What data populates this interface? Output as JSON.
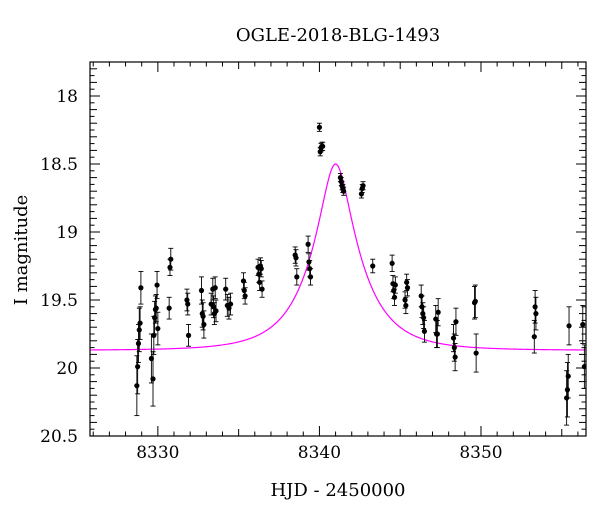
{
  "chart_data": {
    "type": "scatter",
    "title": "OGLE-2018-BLG-1493",
    "xlabel": "HJD - 2450000",
    "ylabel": "I magnitude",
    "xlim": [
      8325.8,
      8356.5
    ],
    "ylim": [
      20.5,
      17.75
    ],
    "y_inverted": true,
    "x_ticks": [
      8330,
      8340,
      8350
    ],
    "y_ticks": [
      18,
      18.5,
      19,
      19.5,
      20,
      20.5
    ],
    "y_tick_labels": [
      "18",
      "18.5",
      "19",
      "19.5",
      "20",
      "20.5"
    ],
    "grid": false,
    "colors": {
      "points": "#000000",
      "model": "#ff00ff"
    },
    "model": {
      "name": "model fit",
      "baseline_mag": 19.87,
      "peak_mag": 18.5,
      "t0": 8341.0,
      "tE": 3.0
    },
    "series": [
      {
        "name": "data",
        "points": [
          [
            8328.7,
            20.13,
            0.22
          ],
          [
            8328.75,
            19.99,
            0.2
          ],
          [
            8328.8,
            19.82,
            0.14
          ],
          [
            8328.85,
            19.72,
            0.16
          ],
          [
            8328.9,
            19.67,
            0.12
          ],
          [
            8328.95,
            19.41,
            0.12
          ],
          [
            8329.6,
            19.93,
            0.18
          ],
          [
            8329.7,
            20.08,
            0.2
          ],
          [
            8329.75,
            19.76,
            0.14
          ],
          [
            8329.8,
            19.63,
            0.12
          ],
          [
            8329.85,
            19.57,
            0.1
          ],
          [
            8329.9,
            19.56,
            0.1
          ],
          [
            8329.95,
            19.39,
            0.1
          ],
          [
            8330.0,
            19.71,
            0.12
          ],
          [
            8330.7,
            19.56,
            0.08
          ],
          [
            8330.75,
            19.26,
            0.06
          ],
          [
            8330.8,
            19.2,
            0.08
          ],
          [
            8331.8,
            19.5,
            0.08
          ],
          [
            8331.85,
            19.53,
            0.08
          ],
          [
            8331.9,
            19.76,
            0.08
          ],
          [
            8332.7,
            19.43,
            0.1
          ],
          [
            8332.75,
            19.6,
            0.1
          ],
          [
            8332.8,
            19.62,
            0.1
          ],
          [
            8332.85,
            19.68,
            0.1
          ],
          [
            8333.3,
            19.53,
            0.08
          ],
          [
            8333.4,
            19.42,
            0.08
          ],
          [
            8333.45,
            19.55,
            0.08
          ],
          [
            8333.5,
            19.6,
            0.08
          ],
          [
            8333.55,
            19.41,
            0.08
          ],
          [
            8333.6,
            19.58,
            0.08
          ],
          [
            8334.2,
            19.42,
            0.08
          ],
          [
            8334.3,
            19.54,
            0.08
          ],
          [
            8334.4,
            19.56,
            0.08
          ],
          [
            8334.5,
            19.53,
            0.08
          ],
          [
            8335.3,
            19.36,
            0.06
          ],
          [
            8335.35,
            19.43,
            0.06
          ],
          [
            8335.4,
            19.47,
            0.06
          ],
          [
            8336.2,
            19.26,
            0.06
          ],
          [
            8336.25,
            19.31,
            0.06
          ],
          [
            8336.3,
            19.37,
            0.06
          ],
          [
            8336.35,
            19.25,
            0.06
          ],
          [
            8336.4,
            19.27,
            0.06
          ],
          [
            8336.45,
            19.42,
            0.06
          ],
          [
            8338.5,
            19.17,
            0.06
          ],
          [
            8338.55,
            19.19,
            0.06
          ],
          [
            8338.6,
            19.33,
            0.06
          ],
          [
            8339.3,
            19.09,
            0.06
          ],
          [
            8339.35,
            19.22,
            0.06
          ],
          [
            8339.4,
            19.27,
            0.06
          ],
          [
            8339.45,
            19.33,
            0.06
          ],
          [
            8340.0,
            18.23,
            0.03
          ],
          [
            8340.05,
            18.41,
            0.03
          ],
          [
            8340.1,
            18.38,
            0.03
          ],
          [
            8340.15,
            18.37,
            0.03
          ],
          [
            8340.2,
            18.37,
            0.03
          ],
          [
            8341.3,
            18.6,
            0.03
          ],
          [
            8341.35,
            18.63,
            0.03
          ],
          [
            8341.4,
            18.66,
            0.03
          ],
          [
            8341.45,
            18.68,
            0.03
          ],
          [
            8341.5,
            18.7,
            0.03
          ],
          [
            8342.6,
            18.72,
            0.03
          ],
          [
            8342.65,
            18.68,
            0.03
          ],
          [
            8342.7,
            18.66,
            0.03
          ],
          [
            8343.3,
            19.25,
            0.05
          ],
          [
            8344.5,
            19.23,
            0.06
          ],
          [
            8344.55,
            19.38,
            0.06
          ],
          [
            8344.6,
            19.43,
            0.06
          ],
          [
            8344.65,
            19.48,
            0.06
          ],
          [
            8344.7,
            19.39,
            0.06
          ],
          [
            8345.3,
            19.5,
            0.06
          ],
          [
            8345.35,
            19.54,
            0.06
          ],
          [
            8345.4,
            19.37,
            0.06
          ],
          [
            8345.45,
            19.41,
            0.06
          ],
          [
            8346.3,
            19.47,
            0.08
          ],
          [
            8346.35,
            19.55,
            0.08
          ],
          [
            8346.4,
            19.6,
            0.08
          ],
          [
            8346.45,
            19.63,
            0.08
          ],
          [
            8346.5,
            19.73,
            0.08
          ],
          [
            8347.2,
            19.64,
            0.1
          ],
          [
            8347.25,
            19.75,
            0.1
          ],
          [
            8347.3,
            19.75,
            0.1
          ],
          [
            8347.35,
            19.59,
            0.1
          ],
          [
            8348.3,
            19.78,
            0.1
          ],
          [
            8348.35,
            19.85,
            0.1
          ],
          [
            8348.4,
            19.92,
            0.1
          ],
          [
            8348.45,
            19.66,
            0.1
          ],
          [
            8349.6,
            19.52,
            0.12
          ],
          [
            8349.65,
            19.51,
            0.12
          ],
          [
            8349.7,
            19.89,
            0.14
          ],
          [
            8353.3,
            19.77,
            0.12
          ],
          [
            8353.35,
            19.55,
            0.12
          ],
          [
            8353.4,
            19.6,
            0.12
          ],
          [
            8355.3,
            20.22,
            0.2
          ],
          [
            8355.35,
            20.16,
            0.2
          ],
          [
            8355.4,
            20.06,
            0.16
          ],
          [
            8355.45,
            19.69,
            0.14
          ],
          [
            8356.3,
            19.68,
            0.14
          ],
          [
            8356.4,
            19.99,
            0.16
          ]
        ]
      }
    ]
  }
}
